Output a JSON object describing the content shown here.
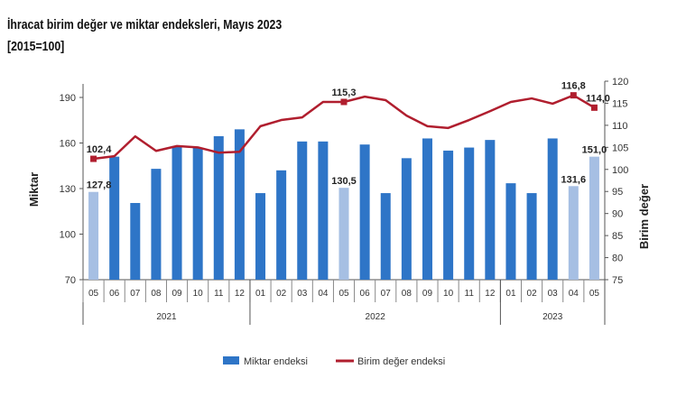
{
  "title": "İhracat birim değer ve miktar endeksleri, Mayıs 2023",
  "subtitle": "[2015=100]",
  "chart_data": {
    "type": "bar",
    "title": "İhracat birim değer ve miktar endeksleri, Mayıs 2023",
    "subtitle": "[2015=100]",
    "categories": [
      "05",
      "06",
      "07",
      "08",
      "09",
      "10",
      "11",
      "12",
      "01",
      "02",
      "03",
      "04",
      "05",
      "06",
      "07",
      "08",
      "09",
      "10",
      "11",
      "12",
      "01",
      "02",
      "03",
      "04",
      "05"
    ],
    "years": [
      {
        "label": "2021",
        "start": 0,
        "end": 7
      },
      {
        "label": "2022",
        "start": 8,
        "end": 19
      },
      {
        "label": "2023",
        "start": 20,
        "end": 24
      }
    ],
    "ylabel_left": "Miktar",
    "ylabel_right": "Birim değer",
    "ylim_left": [
      70,
      190
    ],
    "yticks_left": [
      70,
      100,
      130,
      160,
      190
    ],
    "ylim_right": [
      75,
      120
    ],
    "yticks_right": [
      75,
      80,
      85,
      90,
      95,
      100,
      105,
      110,
      115,
      120
    ],
    "grid": false,
    "legend_placement": "bottom",
    "series": [
      {
        "name": "Miktar endeksi",
        "type": "bar",
        "axis": "left",
        "color": "#2e75c7",
        "highlight_color": "#a6bfe3",
        "values": [
          127.8,
          151,
          120.5,
          143,
          158,
          157,
          164.5,
          169,
          127,
          142,
          161,
          161,
          130.5,
          159,
          127,
          150,
          163,
          155,
          157,
          162,
          133.5,
          127,
          163,
          131.6,
          151.0
        ],
        "highlighted": [
          0,
          12,
          23,
          24
        ]
      },
      {
        "name": "Birim değer endeksi",
        "type": "line",
        "axis": "right",
        "color": "#b01e2e",
        "values": [
          102.4,
          103,
          107.5,
          104.2,
          105.3,
          105,
          103.8,
          104,
          109.8,
          111.2,
          111.8,
          115.3,
          115.3,
          116.5,
          115.7,
          112.2,
          109.8,
          109.4,
          111.2,
          113.2,
          115.3,
          116.1,
          114.9,
          116.8,
          114.0
        ],
        "markers": [
          0,
          12,
          23,
          24
        ]
      }
    ],
    "data_labels": {
      "bar": [
        {
          "index": 0,
          "text": "127,8"
        },
        {
          "index": 12,
          "text": "130,5"
        },
        {
          "index": 23,
          "text": "131,6"
        },
        {
          "index": 24,
          "text": "151,0"
        }
      ],
      "line": [
        {
          "index": 0,
          "text": "102,4"
        },
        {
          "index": 12,
          "text": "115,3"
        },
        {
          "index": 23,
          "text": "116,8"
        },
        {
          "index": 24,
          "text": "114,0"
        }
      ]
    }
  }
}
